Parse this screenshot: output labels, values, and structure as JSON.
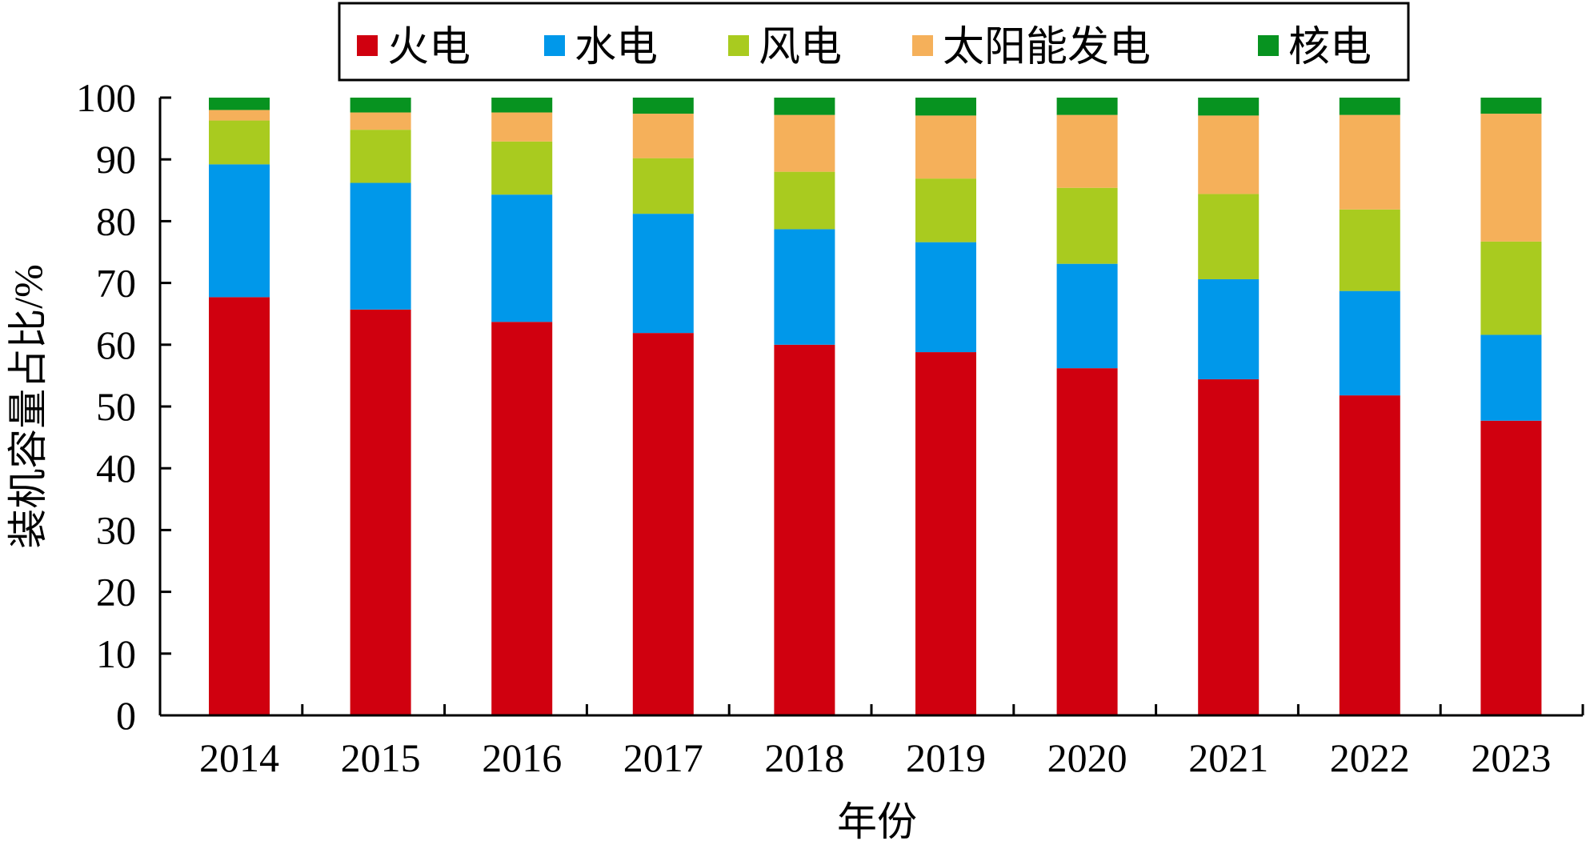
{
  "chart_data": {
    "type": "bar",
    "stacked": true,
    "xlabel": "年份",
    "ylabel": "装机容量占比/%",
    "ylim": [
      0,
      100
    ],
    "yticks": [
      0,
      10,
      20,
      30,
      40,
      50,
      60,
      70,
      80,
      90,
      100
    ],
    "legend_position": "top",
    "categories": [
      "2014",
      "2015",
      "2016",
      "2017",
      "2018",
      "2019",
      "2020",
      "2021",
      "2022",
      "2023"
    ],
    "series": [
      {
        "name": "火电",
        "color": "#d0000f",
        "values": [
          67.7,
          65.7,
          63.7,
          61.9,
          60.0,
          58.8,
          56.2,
          54.4,
          51.8,
          47.7
        ]
      },
      {
        "name": "水电",
        "color": "#0098ea",
        "values": [
          21.5,
          20.5,
          20.6,
          19.3,
          18.7,
          17.8,
          16.9,
          16.2,
          16.9,
          13.9
        ]
      },
      {
        "name": "风电",
        "color": "#a9cb1f",
        "values": [
          7.1,
          8.6,
          8.6,
          9.0,
          9.3,
          10.3,
          12.3,
          13.8,
          13.2,
          15.1
        ]
      },
      {
        "name": "太阳能发电",
        "color": "#f5b05a",
        "values": [
          1.7,
          2.8,
          4.7,
          7.2,
          9.2,
          10.2,
          11.8,
          12.7,
          15.3,
          20.7
        ]
      },
      {
        "name": "核电",
        "color": "#079320",
        "values": [
          2.0,
          2.4,
          2.4,
          2.6,
          2.8,
          2.9,
          2.8,
          2.9,
          2.8,
          2.6
        ]
      }
    ]
  }
}
